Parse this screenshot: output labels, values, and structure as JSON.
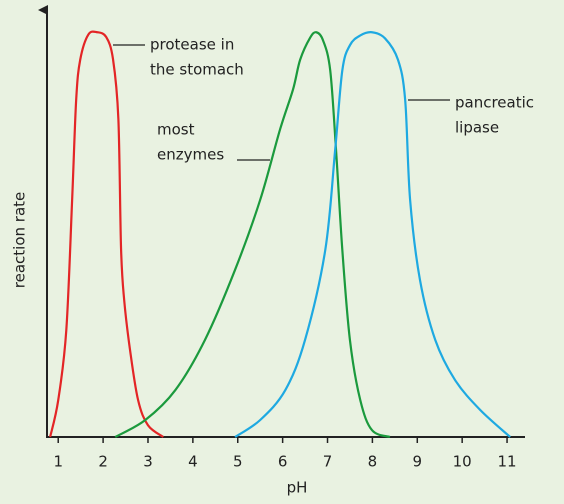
{
  "chart_data": {
    "type": "line",
    "y_label": "reaction rate",
    "x_label": "pH",
    "xlim": [
      0.75,
      11.4
    ],
    "ylim": [
      0,
      105
    ],
    "xticks": [
      1,
      2,
      3,
      4,
      5,
      6,
      7,
      8,
      9,
      10,
      11
    ],
    "series": [
      {
        "name": [
          "protease in",
          "the stomach"
        ],
        "color": "#e32526",
        "x": [
          0.82,
          1.0,
          1.18,
          1.31,
          1.4,
          1.49,
          1.67,
          1.87,
          2.07,
          2.22,
          2.34,
          2.4,
          2.47,
          2.6,
          2.78,
          3.0,
          3.34
        ],
        "values": [
          0,
          9.1,
          26.4,
          58.6,
          83.3,
          93.2,
          99.4,
          100,
          98.8,
          93.4,
          78.6,
          46.5,
          33.8,
          21.5,
          9.1,
          2.9,
          0
        ]
      },
      {
        "name": [
          "most",
          "enzymes"
        ],
        "color": "#1b9a3d",
        "x": [
          2.27,
          2.94,
          3.61,
          4.27,
          4.94,
          5.5,
          5.94,
          6.23,
          6.39,
          6.61,
          6.75,
          6.9,
          7.06,
          7.19,
          7.33,
          7.5,
          7.73,
          7.99,
          8.39
        ],
        "values": [
          0,
          4.2,
          11.6,
          24.0,
          41.3,
          58.6,
          75.9,
          85.8,
          93.2,
          98.6,
          100,
          98.0,
          90.6,
          70.9,
          46.2,
          23.9,
          9.1,
          1.7,
          0
        ]
      },
      {
        "name": [
          "pancreatic",
          "lipase"
        ],
        "color": "#1ea9e1",
        "x": [
          4.94,
          5.5,
          6.06,
          6.5,
          6.95,
          7.17,
          7.33,
          7.5,
          7.73,
          7.99,
          8.28,
          8.57,
          8.73,
          8.84,
          9.06,
          9.4,
          9.84,
          10.4,
          11.07
        ],
        "values": [
          0,
          4.2,
          11.6,
          24.0,
          46.2,
          70.9,
          90.6,
          96.8,
          99.2,
          100,
          98.5,
          93.2,
          83.3,
          58.6,
          38.8,
          24.0,
          14.1,
          6.7,
          0
        ]
      }
    ]
  }
}
